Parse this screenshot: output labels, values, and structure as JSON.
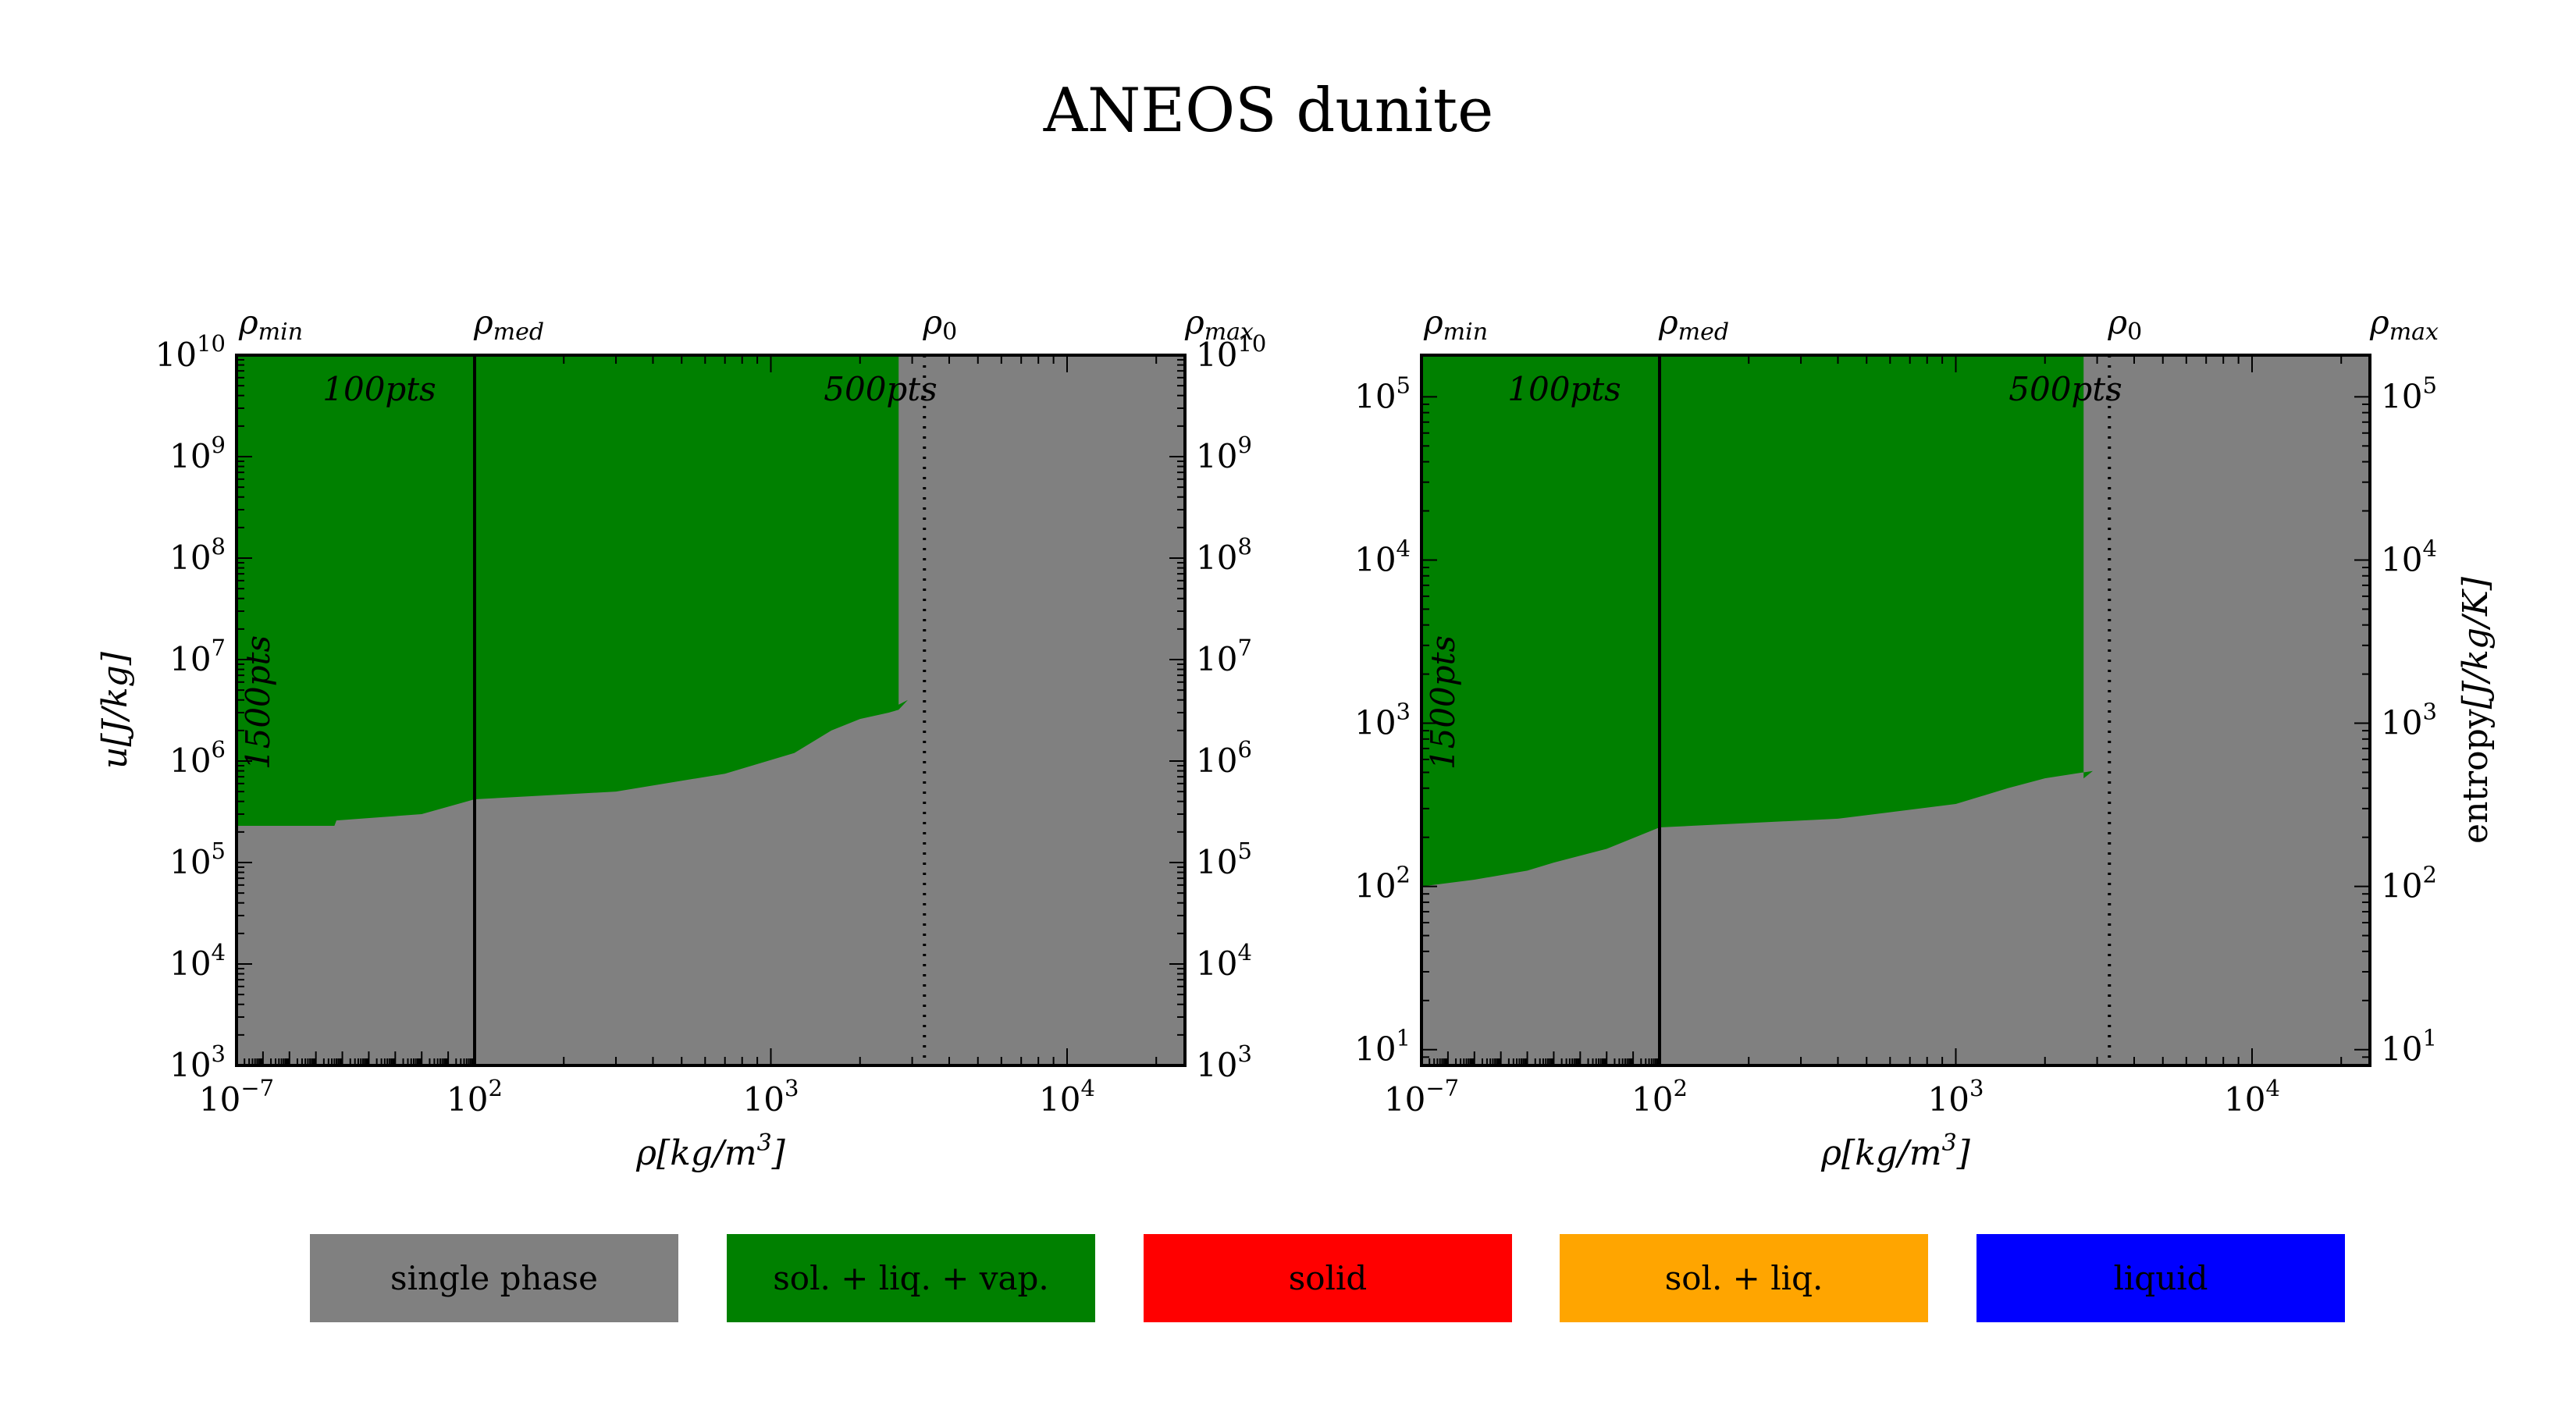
{
  "title": "ANEOS dunite",
  "colors": {
    "single": "#808080",
    "slv": "#008000",
    "solid": "#ff0000",
    "sl": "#ffa500",
    "liquid": "#0000ff"
  },
  "legend": [
    {
      "label": "single phase",
      "color": "#808080"
    },
    {
      "label": "sol. + liq. + vap.",
      "color": "#008000"
    },
    {
      "label": "solid",
      "color": "#ff0000"
    },
    {
      "label": "sol. + liq.",
      "color": "#ffa500"
    },
    {
      "label": "liquid",
      "color": "#0000ff"
    }
  ],
  "chart_data": [
    {
      "type": "area",
      "panel": "u-rho",
      "xlabel": "ρ[kg/m³]",
      "ylabel": "u[J/kg]",
      "yscale": "log",
      "ylim": [
        1000.0,
        10000000000.0
      ],
      "y_ticks": [
        3,
        4,
        5,
        6,
        7,
        8,
        9,
        10
      ],
      "x_low_segment": {
        "range": [
          1e-07,
          100
        ],
        "scale": "log",
        "tick_labels": [
          "-7"
        ]
      },
      "x_high_segment": {
        "range": [
          100,
          25000
        ],
        "scale": "log",
        "tick_labels": [
          "2",
          "3",
          "4"
        ]
      },
      "top_markers": {
        "rho_min": 1e-07,
        "rho_med": 100,
        "rho_0": 3300,
        "rho_max": 25000
      },
      "annotations": [
        "100pts",
        "500pts",
        "1500pts"
      ],
      "boundary_low": [
        [
          1e-07,
          230000.0
        ],
        [
          1e-05,
          230000.0
        ],
        [
          0.0005,
          230000.0
        ],
        [
          0.0006,
          260000.0
        ],
        [
          1,
          300000.0
        ],
        [
          100,
          420000.0
        ]
      ],
      "boundary_high": [
        [
          100,
          420000.0
        ],
        [
          300,
          500000.0
        ],
        [
          700,
          750000.0
        ],
        [
          1200,
          1200000.0
        ],
        [
          1600,
          2000000.0
        ],
        [
          2000,
          2600000.0
        ],
        [
          2500,
          3000000.0
        ],
        [
          2700,
          3200000.0
        ],
        [
          2900,
          4000000.0
        ]
      ],
      "slv_max_rho": 2700,
      "regions": [
        "single phase",
        "sol. + liq. + vap."
      ]
    },
    {
      "type": "area",
      "panel": "s-rho",
      "xlabel": "ρ[kg/m³]",
      "ylabel": "entropy[J/kg/K]",
      "yscale": "log",
      "ylim": [
        8,
        180000
      ],
      "y_ticks": [
        1,
        2,
        3,
        4,
        5
      ],
      "x_low_segment": {
        "range": [
          1e-07,
          100
        ],
        "scale": "log",
        "tick_labels": [
          "-7"
        ]
      },
      "x_high_segment": {
        "range": [
          100,
          25000
        ],
        "scale": "log",
        "tick_labels": [
          "2",
          "3",
          "4"
        ]
      },
      "top_markers": {
        "rho_min": 1e-07,
        "rho_med": 100,
        "rho_0": 3300,
        "rho_max": 25000
      },
      "annotations": [
        "100pts",
        "500pts",
        "1500pts"
      ],
      "boundary_low": [
        [
          1e-07,
          100
        ],
        [
          1e-05,
          110
        ],
        [
          0.001,
          125
        ],
        [
          0.01,
          140
        ],
        [
          1,
          170
        ],
        [
          100,
          230
        ]
      ],
      "boundary_high": [
        [
          100,
          230
        ],
        [
          400,
          260
        ],
        [
          1000,
          320
        ],
        [
          1500,
          400
        ],
        [
          2000,
          460
        ],
        [
          2700,
          500
        ],
        [
          2900,
          510
        ]
      ],
      "slv_max_rho": 2700,
      "regions": [
        "single phase",
        "sol. + liq. + vap."
      ]
    }
  ]
}
